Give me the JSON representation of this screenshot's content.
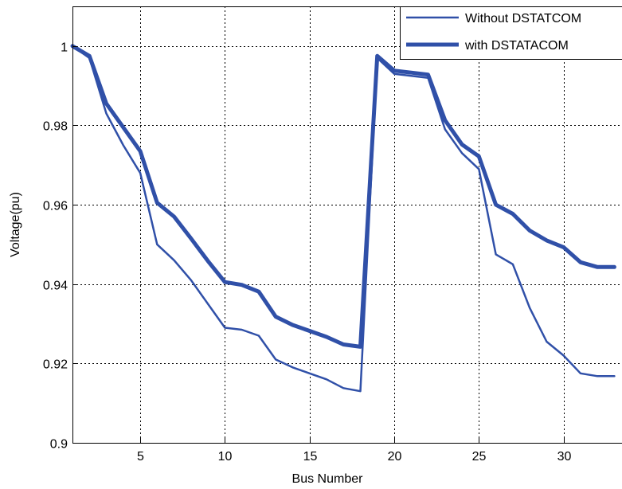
{
  "chart_data": {
    "type": "line",
    "title": "",
    "xlabel": "Bus Number",
    "ylabel": "Voltage(pu)",
    "xlim": [
      1,
      33
    ],
    "ylim": [
      0.9,
      1.01
    ],
    "xticks": [
      5,
      10,
      15,
      20,
      25,
      30
    ],
    "yticks": [
      0.9,
      0.92,
      0.94,
      0.96,
      0.98,
      1
    ],
    "ytick_labels": [
      "0.9",
      "0.92",
      "0.94",
      "0.96",
      "0.98",
      "1"
    ],
    "grid": true,
    "legend_position": "top-right",
    "x": [
      1,
      2,
      3,
      4,
      5,
      6,
      7,
      8,
      9,
      10,
      11,
      12,
      13,
      14,
      15,
      16,
      17,
      18,
      19,
      20,
      21,
      22,
      23,
      24,
      25,
      26,
      27,
      28,
      29,
      30,
      31,
      32,
      33
    ],
    "series": [
      {
        "name": "Without DSTATCOM",
        "color": "#3050a8",
        "values": [
          1.0,
          0.997,
          0.983,
          0.975,
          0.968,
          0.95,
          0.946,
          0.941,
          0.935,
          0.929,
          0.9285,
          0.927,
          0.921,
          0.919,
          0.9175,
          0.916,
          0.9138,
          0.913,
          0.997,
          0.993,
          0.9925,
          0.992,
          0.979,
          0.973,
          0.969,
          0.9475,
          0.945,
          0.934,
          0.9255,
          0.922,
          0.9175,
          0.9168,
          0.9168
        ]
      },
      {
        "name": "with DSTATACOM",
        "color": "#3050a8",
        "values": [
          1.0,
          0.9975,
          0.9855,
          0.9795,
          0.9735,
          0.9605,
          0.957,
          0.9515,
          0.9458,
          0.9405,
          0.9398,
          0.9381,
          0.9318,
          0.9297,
          0.9282,
          0.9267,
          0.9248,
          0.9242,
          0.9975,
          0.9938,
          0.9933,
          0.9928,
          0.9813,
          0.9752,
          0.9722,
          0.96,
          0.9577,
          0.9535,
          0.951,
          0.9493,
          0.9455,
          0.9443,
          0.9443
        ]
      }
    ]
  }
}
